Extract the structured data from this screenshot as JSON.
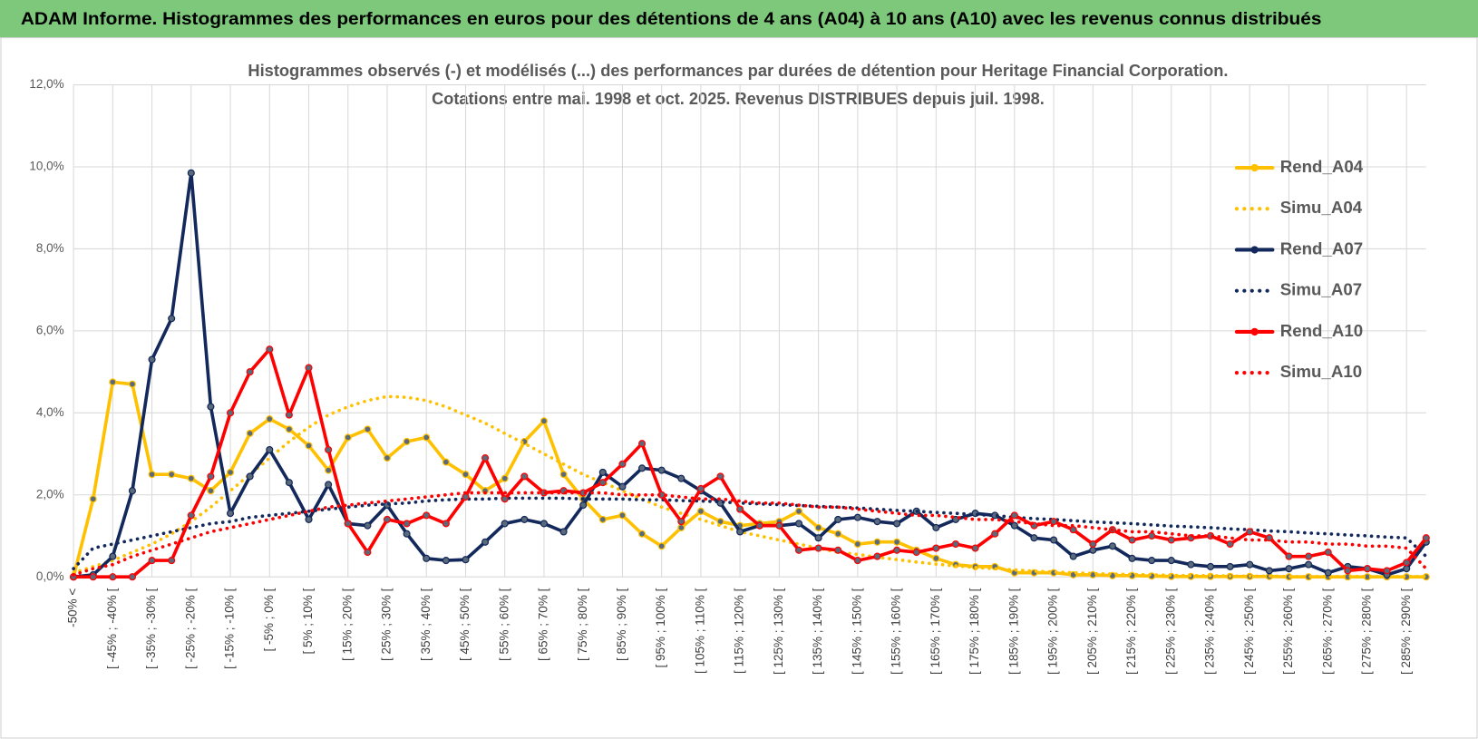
{
  "header": {
    "title": "ADAM Informe. Histogrammes des performances en euros pour des détentions de 4 ans (A04) à 10 ans (A10) avec les revenus connus distribués"
  },
  "chart_data": {
    "type": "line",
    "title": "Histogrammes observés (-) et modélisés (...) des performances par durées de détention pour Heritage Financial Corporation.",
    "subtitle": "Cotations entre mai. 1998 et oct. 2025. Revenus DISTRIBUES depuis juil. 1998.",
    "categories": [
      "-50% <",
      null,
      "[ -45% ; -40% [",
      null,
      "[ -35% ; -30% [",
      null,
      "[ -25% ; -20% [",
      null,
      "[ -15% ; -10% [",
      null,
      "[ -5% ; 0% [",
      null,
      "[ 5% ; 10% [",
      null,
      "[ 15% ; 20% [",
      null,
      "[ 25% ; 30% [",
      null,
      "[ 35% ; 40% [",
      null,
      "[ 45% ; 50% [",
      null,
      "[ 55% ; 60% [",
      null,
      "[ 65% ; 70% [",
      null,
      "[ 75% ; 80% [",
      null,
      "[ 85% ; 90% [",
      null,
      "[ 95% ; 100% [",
      null,
      "[ 105% ; 110% [",
      null,
      "[ 115% ; 120% [",
      null,
      "[ 125% ; 130% [",
      null,
      "[ 135% ; 140% [",
      null,
      "[ 145% ; 150% [",
      null,
      "[ 155% ; 160% [",
      null,
      "[ 165% ; 170% [",
      null,
      "[ 175% ; 180% [",
      null,
      "[ 185% ; 190% [",
      null,
      "[ 195% ; 200% [",
      null,
      "[ 205% ; 210% [",
      null,
      "[ 215% ; 220% [",
      null,
      "[ 225% ; 230% [",
      null,
      "[ 235% ; 240% [",
      null,
      "[ 245% ; 250% [",
      null,
      "[ 255% ; 260% [",
      null,
      "[ 265% ; 270% [",
      null,
      "[ 275% ; 280% [",
      null,
      "[ 285% ; 290% [",
      null
    ],
    "ylim": [
      0,
      12
    ],
    "yticks": [
      {
        "value": 0,
        "label": "0,0%"
      },
      {
        "value": 2,
        "label": "2,0%"
      },
      {
        "value": 4,
        "label": "4,0%"
      },
      {
        "value": 6,
        "label": "6,0%"
      },
      {
        "value": 8,
        "label": "8,0%"
      },
      {
        "value": 10,
        "label": "10,0%"
      },
      {
        "value": 12,
        "label": "12,0%"
      }
    ],
    "grid": true,
    "legend": "right",
    "series": [
      {
        "name": "Rend_A04",
        "color": "#FFC000",
        "dash": "solid",
        "values": [
          0,
          1.9,
          4.75,
          4.7,
          2.5,
          2.5,
          2.4,
          2.1,
          2.55,
          3.5,
          3.85,
          3.6,
          3.2,
          2.6,
          3.4,
          3.6,
          2.9,
          3.3,
          3.4,
          2.8,
          2.5,
          2.1,
          2.4,
          3.3,
          3.8,
          2.5,
          1.9,
          1.4,
          1.5,
          1.05,
          0.75,
          1.2,
          1.6,
          1.35,
          1.25,
          1.3,
          1.35,
          1.6,
          1.2,
          1.05,
          0.8,
          0.85,
          0.85,
          0.65,
          0.45,
          0.3,
          0.25,
          0.25,
          0.1,
          0.1,
          0.1,
          0.05,
          0.05,
          0.03,
          0.03,
          0.02,
          0.01,
          0.01,
          0.01,
          0.01,
          0.01,
          0.01,
          0,
          0,
          0,
          0,
          0,
          0,
          0,
          0
        ]
      },
      {
        "name": "Simu_A04",
        "color": "#FFC000",
        "dash": "dotted",
        "values": [
          0.1,
          0.25,
          0.4,
          0.6,
          0.8,
          1.05,
          1.35,
          1.7,
          2.1,
          2.5,
          2.9,
          3.3,
          3.65,
          3.95,
          4.15,
          4.3,
          4.4,
          4.38,
          4.3,
          4.15,
          3.95,
          3.75,
          3.5,
          3.25,
          3.0,
          2.75,
          2.5,
          2.3,
          2.1,
          1.9,
          1.7,
          1.55,
          1.4,
          1.25,
          1.1,
          1.0,
          0.9,
          0.8,
          0.7,
          0.6,
          0.55,
          0.48,
          0.42,
          0.36,
          0.31,
          0.27,
          0.23,
          0.2,
          0.17,
          0.14,
          0.12,
          0.1,
          0.08,
          0.07,
          0.06,
          0.05,
          0.04,
          0.03,
          0.03,
          0.02,
          0.02,
          0.02,
          0.01,
          0.01,
          0.01,
          0.01,
          0.01,
          0.01,
          0.01,
          0.01
        ]
      },
      {
        "name": "Rend_A07",
        "color": "#13295C",
        "dash": "solid",
        "values": [
          0,
          0.05,
          0.5,
          2.1,
          5.3,
          6.3,
          9.85,
          4.15,
          1.55,
          2.45,
          3.1,
          2.3,
          1.4,
          2.25,
          1.3,
          1.25,
          1.75,
          1.05,
          0.45,
          0.4,
          0.42,
          0.85,
          1.3,
          1.4,
          1.3,
          1.1,
          1.75,
          2.55,
          2.2,
          2.65,
          2.6,
          2.4,
          2.1,
          1.8,
          1.1,
          1.25,
          1.25,
          1.3,
          0.95,
          1.4,
          1.45,
          1.35,
          1.3,
          1.6,
          1.2,
          1.4,
          1.55,
          1.5,
          1.25,
          0.95,
          0.9,
          0.5,
          0.65,
          0.75,
          0.45,
          0.4,
          0.4,
          0.3,
          0.25,
          0.25,
          0.3,
          0.15,
          0.2,
          0.3,
          0.1,
          0.25,
          0.2,
          0.05,
          0.2,
          0.85
        ]
      },
      {
        "name": "Simu_A07",
        "color": "#13295C",
        "dash": "dotted",
        "values": [
          0.2,
          0.7,
          0.8,
          0.9,
          1.0,
          1.1,
          1.2,
          1.3,
          1.35,
          1.45,
          1.5,
          1.55,
          1.6,
          1.65,
          1.7,
          1.75,
          1.78,
          1.8,
          1.85,
          1.88,
          1.9,
          1.9,
          1.92,
          1.92,
          1.92,
          1.92,
          1.9,
          1.9,
          1.9,
          1.88,
          1.88,
          1.86,
          1.85,
          1.83,
          1.8,
          1.78,
          1.76,
          1.74,
          1.72,
          1.7,
          1.68,
          1.65,
          1.62,
          1.6,
          1.57,
          1.55,
          1.52,
          1.5,
          1.45,
          1.42,
          1.4,
          1.37,
          1.34,
          1.32,
          1.3,
          1.27,
          1.24,
          1.22,
          1.2,
          1.17,
          1.15,
          1.12,
          1.1,
          1.07,
          1.05,
          1.02,
          1.0,
          0.97,
          0.95,
          0.5
        ]
      },
      {
        "name": "Rend_A10",
        "color": "#FF0000",
        "dash": "solid",
        "values": [
          0,
          0,
          0,
          0,
          0.4,
          0.4,
          1.5,
          2.45,
          4.0,
          5.0,
          5.55,
          3.95,
          5.1,
          3.1,
          1.3,
          0.6,
          1.4,
          1.3,
          1.5,
          1.3,
          1.95,
          2.9,
          1.9,
          2.45,
          2.05,
          2.1,
          2.05,
          2.3,
          2.75,
          3.25,
          2.0,
          1.35,
          2.15,
          2.45,
          1.65,
          1.25,
          1.25,
          0.65,
          0.7,
          0.65,
          0.4,
          0.5,
          0.65,
          0.6,
          0.7,
          0.8,
          0.7,
          1.05,
          1.5,
          1.25,
          1.35,
          1.15,
          0.8,
          1.15,
          0.9,
          1.0,
          0.9,
          0.95,
          1.0,
          0.8,
          1.1,
          0.95,
          0.5,
          0.5,
          0.6,
          0.15,
          0.2,
          0.15,
          0.35,
          0.95
        ]
      },
      {
        "name": "Simu_A10",
        "color": "#FF0000",
        "dash": "dotted",
        "values": [
          0.05,
          0.2,
          0.3,
          0.5,
          0.65,
          0.8,
          0.95,
          1.1,
          1.2,
          1.3,
          1.4,
          1.5,
          1.6,
          1.7,
          1.75,
          1.8,
          1.85,
          1.9,
          1.95,
          2.0,
          2.05,
          2.05,
          2.05,
          2.05,
          2.05,
          2.05,
          2.05,
          2.05,
          2.0,
          2.0,
          2.0,
          1.95,
          1.9,
          1.9,
          1.85,
          1.8,
          1.8,
          1.75,
          1.7,
          1.7,
          1.65,
          1.6,
          1.55,
          1.5,
          1.5,
          1.45,
          1.4,
          1.4,
          1.35,
          1.3,
          1.25,
          1.25,
          1.2,
          1.15,
          1.1,
          1.1,
          1.05,
          1.0,
          1.0,
          0.95,
          0.9,
          0.9,
          0.85,
          0.85,
          0.8,
          0.8,
          0.75,
          0.75,
          0.7,
          0.2
        ]
      }
    ]
  }
}
